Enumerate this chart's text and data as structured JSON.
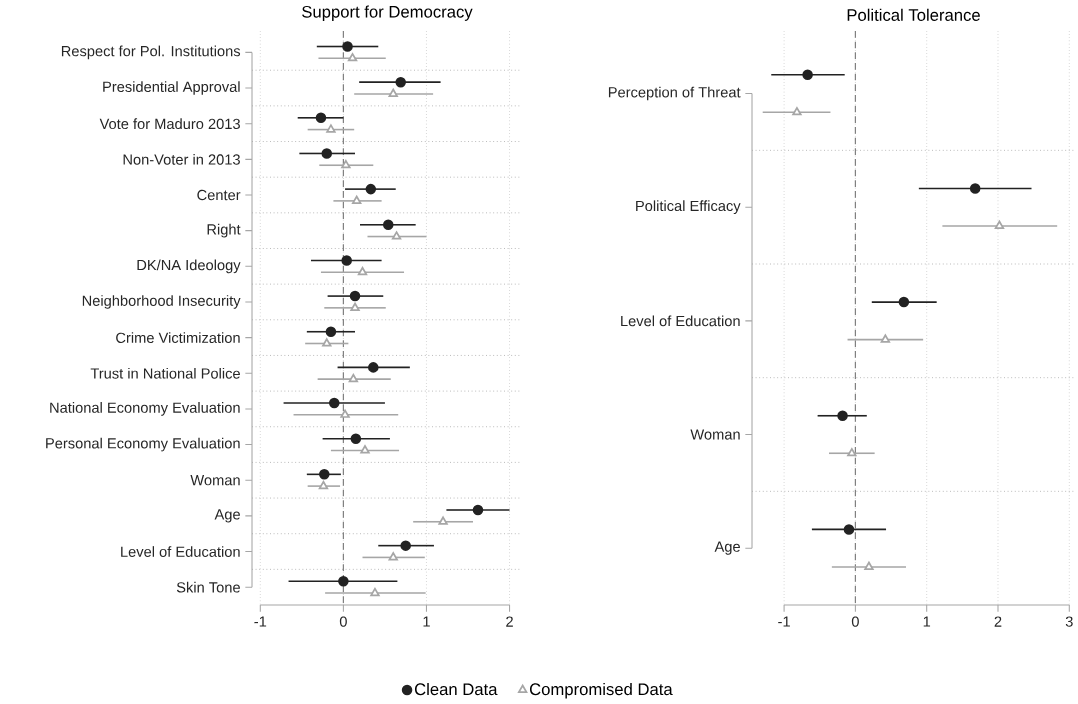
{
  "chart_data": [
    {
      "type": "scatter",
      "orientation": "horizontal",
      "title": "Support for Democracy",
      "categories": [
        "Respect for Pol. Institutions",
        "Presidential Approval",
        "Vote for Maduro 2013",
        "Non-Voter in 2013",
        "Center",
        "Right",
        "DK/NA Ideology",
        "Neighborhood Insecurity",
        "Crime Victimization",
        "Trust in National Police",
        "National Economy Evaluation",
        "Personal Economy Evaluation",
        "Woman",
        "Age",
        "Level of Education",
        "Skin Tone"
      ],
      "xlim": [
        -1.1,
        2.15
      ],
      "xticks": [
        -1,
        0,
        1,
        2
      ],
      "grid": true,
      "legend": "bottom",
      "ref_lines": [
        {
          "axis": "x",
          "value": 0,
          "color": "#808080",
          "line_style": "dashed"
        }
      ],
      "series": [
        {
          "name": "Clean Data",
          "color": "#222222",
          "marker": "circle",
          "values": [
            0.05,
            0.69,
            -0.27,
            -0.2,
            0.33,
            0.54,
            0.04,
            0.14,
            -0.15,
            0.36,
            -0.11,
            0.15,
            -0.23,
            1.62,
            0.75,
            0.0
          ],
          "errors": [
            [
              -0.32,
              0.42
            ],
            [
              0.19,
              1.17
            ],
            [
              -0.55,
              0.0
            ],
            [
              -0.53,
              0.14
            ],
            [
              0.02,
              0.63
            ],
            [
              0.2,
              0.87
            ],
            [
              -0.39,
              0.46
            ],
            [
              -0.19,
              0.48
            ],
            [
              -0.44,
              0.14
            ],
            [
              -0.07,
              0.8
            ],
            [
              -0.72,
              0.5
            ],
            [
              -0.25,
              0.56
            ],
            [
              -0.44,
              -0.03
            ],
            [
              1.24,
              2.0
            ],
            [
              0.42,
              1.09
            ],
            [
              -0.66,
              0.65
            ]
          ]
        },
        {
          "name": "Compromised Data",
          "color": "#a6a6a6",
          "marker": "triangle",
          "values": [
            0.11,
            0.6,
            -0.15,
            0.03,
            0.16,
            0.64,
            0.23,
            0.14,
            -0.2,
            0.12,
            0.02,
            0.26,
            -0.24,
            1.2,
            0.6,
            0.38
          ],
          "errors": [
            [
              -0.3,
              0.51
            ],
            [
              0.13,
              1.08
            ],
            [
              -0.43,
              0.13
            ],
            [
              -0.29,
              0.36
            ],
            [
              -0.12,
              0.46
            ],
            [
              0.29,
              1.0
            ],
            [
              -0.27,
              0.73
            ],
            [
              -0.23,
              0.51
            ],
            [
              -0.46,
              0.06
            ],
            [
              -0.31,
              0.57
            ],
            [
              -0.6,
              0.66
            ],
            [
              -0.15,
              0.67
            ],
            [
              -0.43,
              -0.04
            ],
            [
              0.84,
              1.56
            ],
            [
              0.23,
              0.98
            ],
            [
              -0.22,
              0.99
            ]
          ]
        }
      ]
    },
    {
      "type": "scatter",
      "orientation": "horizontal",
      "title": "Political Tolerance",
      "categories": [
        "Perception of Threat",
        "Political Efficacy",
        "Level of Education",
        "Woman",
        "Age"
      ],
      "xlim": [
        -1.45,
        3.08
      ],
      "xticks": [
        -1,
        0,
        1,
        2,
        3
      ],
      "grid": true,
      "ref_lines": [
        {
          "axis": "x",
          "value": 0,
          "color": "#808080",
          "line_style": "dashed"
        }
      ],
      "series": [
        {
          "color": "#222222",
          "marker": "circle",
          "values": [
            -0.67,
            1.68,
            0.68,
            -0.18,
            -0.09
          ],
          "errors": [
            [
              -1.18,
              -0.15
            ],
            [
              0.89,
              2.47
            ],
            [
              0.23,
              1.14
            ],
            [
              -0.53,
              0.16
            ],
            [
              -0.61,
              0.43
            ]
          ]
        },
        {
          "color": "#a6a6a6",
          "marker": "triangle",
          "values": [
            -0.82,
            2.02,
            0.42,
            -0.05,
            0.19
          ],
          "errors": [
            [
              -1.3,
              -0.35
            ],
            [
              1.22,
              2.83
            ],
            [
              -0.11,
              0.95
            ],
            [
              -0.37,
              0.27
            ],
            [
              -0.33,
              0.71
            ]
          ]
        }
      ]
    }
  ]
}
